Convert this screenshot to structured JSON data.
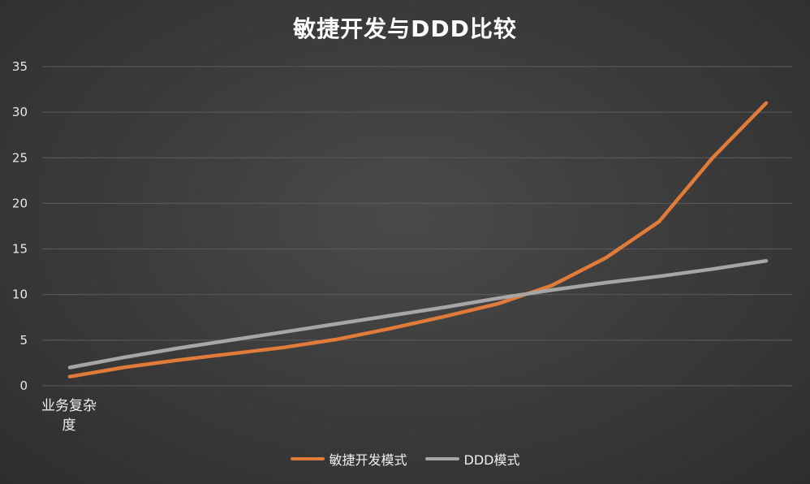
{
  "chart_data": {
    "type": "line",
    "title": "敏捷开发与DDD比较",
    "xlabel": "业务复杂度",
    "ylabel": "",
    "ylim": [
      0,
      35
    ],
    "yticks": [
      0,
      5,
      10,
      15,
      20,
      25,
      30,
      35
    ],
    "x": [
      1,
      2,
      3,
      4,
      5,
      6,
      7,
      8,
      9,
      10,
      11,
      12,
      13,
      14
    ],
    "grid": true,
    "legend_position": "bottom",
    "series": [
      {
        "name": "敏捷开发模式",
        "color": "#E07B39",
        "values": [
          1,
          2,
          2.8,
          3.5,
          4.2,
          5.1,
          6.3,
          7.6,
          9,
          11,
          14,
          18,
          25,
          31
        ]
      },
      {
        "name": "DDD模式",
        "color": "#A6A6A6",
        "values": [
          2,
          3.1,
          4.1,
          5,
          5.9,
          6.8,
          7.7,
          8.6,
          9.6,
          10.5,
          11.3,
          12,
          12.8,
          13.7
        ]
      }
    ]
  }
}
